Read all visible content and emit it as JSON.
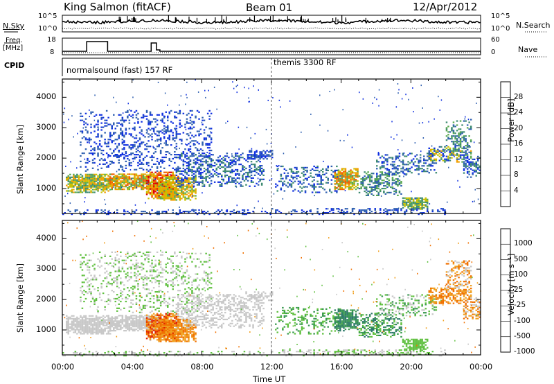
{
  "header": {
    "station": "King Salmon (fitACF)",
    "beam": "Beam 01",
    "date": "12/Apr/2012"
  },
  "nsky": {
    "label": "N.Sky",
    "yticks": [
      "10^5",
      "10^0"
    ]
  },
  "nsearch": {
    "label": "N.Search",
    "yticks": [
      "10^5",
      "10^0"
    ]
  },
  "freq": {
    "label_line1": "Freq.",
    "label_line2": "[MHz]",
    "yticks": [
      "18",
      "8"
    ]
  },
  "nave": {
    "label": "Nave",
    "yticks": [
      "60",
      "0"
    ]
  },
  "cpid": {
    "label": "CPID",
    "modes": [
      "normalsound (fast) 157 RF",
      "themis 3300 RF"
    ]
  },
  "chart_data": [
    {
      "type": "heatmap",
      "quantity": "power",
      "ylabel": "Slant Range [km]",
      "xlabel": "Time UT",
      "x_ticks": [
        "00:00",
        "04:00",
        "08:00",
        "12:00",
        "16:00",
        "20:00",
        "00:00"
      ],
      "y_ticks": [
        "1000",
        "2000",
        "3000",
        "4000"
      ],
      "ylim_km": [
        180,
        4600
      ],
      "colorbar": {
        "label": "Power [dB]",
        "ticks": [
          "4",
          "8",
          "12",
          "16",
          "20",
          "24",
          "28"
        ],
        "range_dB": [
          0,
          32
        ],
        "colors": [
          "#1030e0",
          "#2e5fb0",
          "#3d8a70",
          "#5aaa50",
          "#c9c000",
          "#f0a000",
          "#f06000",
          "#e00000"
        ]
      }
    },
    {
      "type": "heatmap",
      "quantity": "velocity",
      "ylabel": "Slant Range [km]",
      "xlabel": "Time UT",
      "x_ticks": [
        "00:00",
        "04:00",
        "08:00",
        "12:00",
        "16:00",
        "20:00",
        "00:00"
      ],
      "y_ticks": [
        "1000",
        "2000",
        "3000",
        "4000"
      ],
      "ylim_km": [
        180,
        4600
      ],
      "colorbar": {
        "label": "Velocity [m s⁻¹]",
        "ticks": [
          "1000",
          "500",
          "100",
          "25",
          "-25",
          "-100",
          "-500",
          "-1000"
        ],
        "colors": [
          "#2040c0",
          "#2e7a6a",
          "#3a9a50",
          "#60c040",
          "#c8c8c8",
          "#f0a020",
          "#f07000",
          "#e02000"
        ]
      }
    }
  ],
  "x_axis_label": "Time UT"
}
